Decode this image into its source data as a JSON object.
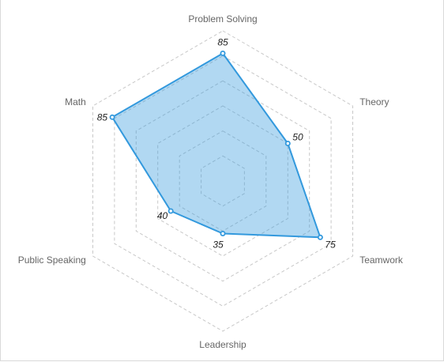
{
  "chart_data": {
    "type": "radar",
    "axes": [
      "Problem Solving",
      "Theory",
      "Teamwork",
      "Leadership",
      "Public Speaking",
      "Math"
    ],
    "values": [
      85,
      50,
      75,
      35,
      40,
      85
    ],
    "value_labels": [
      "85",
      "50",
      "75",
      "35",
      "40",
      "85"
    ],
    "rlim": [
      0,
      100
    ],
    "grid_levels": 6,
    "grid": true,
    "legend": "none",
    "colors": {
      "stroke": "#3399dd",
      "fill": "#3399dd",
      "grid": "#c8c8c8",
      "axis_label": "#666666"
    }
  }
}
